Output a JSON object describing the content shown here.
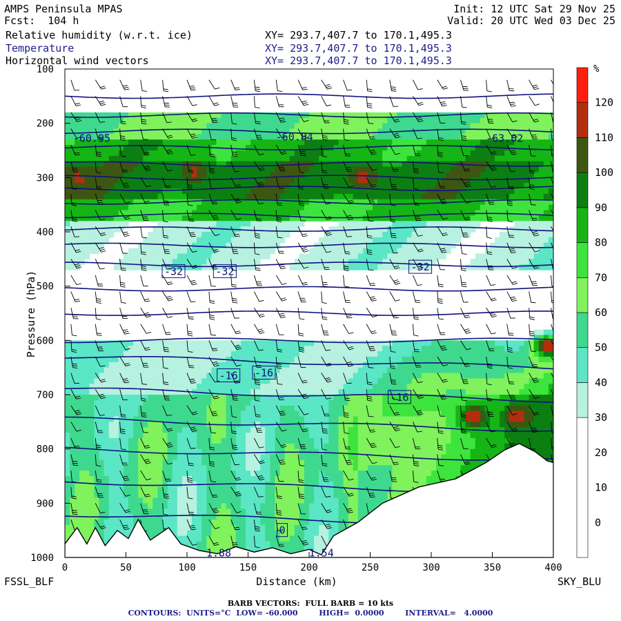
{
  "header": {
    "title": "AMPS Peninsula MPAS",
    "forecast": "Fcst:  104 h",
    "init": "Init: 12 UTC Sat 29 Nov 25",
    "valid": "Valid: 20 UTC Wed 03 Dec 25",
    "fields": [
      {
        "name": "Relative humidity (w.r.t. ice)",
        "xy": "XY= 293.7,407.7 to 170.1,495.3"
      },
      {
        "name": "Temperature",
        "xy": "XY= 293.7,407.7 to 170.1,495.3"
      },
      {
        "name": "Horizontal wind vectors",
        "xy": "XY= 293.7,407.7 to 170.1,495.3"
      }
    ]
  },
  "colors": {
    "rh_bins": [
      {
        "min": -10,
        "max": 30,
        "color": "#ffffff"
      },
      {
        "min": 30,
        "max": 40,
        "color": "#b7f1e0"
      },
      {
        "min": 40,
        "max": 50,
        "color": "#5be6c6"
      },
      {
        "min": 50,
        "max": 60,
        "color": "#3ed98e"
      },
      {
        "min": 60,
        "max": 70,
        "color": "#7ff25c"
      },
      {
        "min": 70,
        "max": 80,
        "color": "#3ee43e"
      },
      {
        "min": 80,
        "max": 90,
        "color": "#15b515"
      },
      {
        "min": 90,
        "max": 100,
        "color": "#0c7f12"
      },
      {
        "min": 100,
        "max": 110,
        "color": "#3d5612"
      },
      {
        "min": 110,
        "max": 120,
        "color": "#b22f0e"
      },
      {
        "min": 120,
        "max": 130,
        "color": "#ff1f0c"
      }
    ],
    "contour": "#101080",
    "terrain": "#ffffff"
  },
  "chart_data": {
    "type": "heatmap",
    "subtype": "vertical cross-section",
    "xlabel": "Distance (km)",
    "ylabel": "Pressure (hPa)",
    "xlim": [
      0,
      400
    ],
    "ylim": [
      1000,
      100
    ],
    "x_ticks": [
      "0",
      "50",
      "100",
      "150",
      "200",
      "250",
      "300",
      "350",
      "400"
    ],
    "y_ticks": [
      "100",
      "200",
      "300",
      "400",
      "500",
      "600",
      "700",
      "800",
      "900",
      "1000"
    ],
    "left_endpoint": "FSSL_BLF",
    "right_endpoint": "SKY_BLU",
    "colorbar": {
      "unit": "%",
      "labels": [
        "0",
        "10",
        "20",
        "30",
        "40",
        "50",
        "60",
        "70",
        "80",
        "90",
        "100",
        "110",
        "120"
      ]
    },
    "rh_bands": [
      {
        "p_top": 180,
        "p_bottom": 230,
        "rh": 60
      },
      {
        "p_top": 230,
        "p_bottom": 270,
        "rh": 85
      },
      {
        "p_top": 270,
        "p_bottom": 345,
        "rh": 95
      },
      {
        "p_top": 345,
        "p_bottom": 380,
        "rh": 82
      },
      {
        "p_top": 380,
        "p_bottom": 470,
        "rh": 35
      },
      {
        "p_top": 470,
        "p_bottom": 600,
        "rh": 12
      },
      {
        "p_top": 600,
        "p_bottom": 700,
        "rh": 38
      },
      {
        "p_top": 700,
        "p_bottom": 1000,
        "rh": 52
      }
    ],
    "rh_peaks": [
      {
        "x": 10,
        "p": 300,
        "rh": 112
      },
      {
        "x": 105,
        "p": 290,
        "rh": 112
      },
      {
        "x": 245,
        "p": 300,
        "rh": 115
      },
      {
        "x": 335,
        "p": 740,
        "rh": 122
      },
      {
        "x": 370,
        "p": 740,
        "rh": 115
      },
      {
        "x": 395,
        "p": 610,
        "rh": 118
      }
    ],
    "temperature_isotherms_p": [
      150,
      185,
      215,
      245,
      275,
      300,
      320,
      345,
      370,
      395,
      425,
      460,
      505,
      550,
      600,
      640,
      700,
      755,
      810,
      870,
      930
    ],
    "temperature_labels": [
      {
        "x": 22,
        "p": 228,
        "text": "-60.95"
      },
      {
        "x": 188,
        "p": 225,
        "text": "-60.84"
      },
      {
        "x": 360,
        "p": 228,
        "text": "-63.02"
      },
      {
        "x": 89,
        "p": 473,
        "text": "-32"
      },
      {
        "x": 131,
        "p": 473,
        "text": "-32"
      },
      {
        "x": 291,
        "p": 465,
        "text": "-32"
      },
      {
        "x": 134,
        "p": 665,
        "text": "-16"
      },
      {
        "x": 163,
        "p": 660,
        "text": "-16"
      },
      {
        "x": 274,
        "p": 705,
        "text": "-16"
      },
      {
        "x": 178,
        "p": 950,
        "text": "0"
      },
      {
        "x": 126,
        "p": 992,
        "text": "1.88"
      },
      {
        "x": 210,
        "p": 992,
        "text": "1.54"
      }
    ],
    "terrain_surface": [
      {
        "x": 0,
        "p": 975
      },
      {
        "x": 10,
        "p": 945
      },
      {
        "x": 18,
        "p": 975
      },
      {
        "x": 25,
        "p": 945
      },
      {
        "x": 33,
        "p": 978
      },
      {
        "x": 43,
        "p": 950
      },
      {
        "x": 52,
        "p": 965
      },
      {
        "x": 60,
        "p": 930
      },
      {
        "x": 70,
        "p": 968
      },
      {
        "x": 85,
        "p": 945
      },
      {
        "x": 95,
        "p": 975
      },
      {
        "x": 110,
        "p": 987
      },
      {
        "x": 125,
        "p": 993
      },
      {
        "x": 140,
        "p": 980
      },
      {
        "x": 155,
        "p": 990
      },
      {
        "x": 170,
        "p": 982
      },
      {
        "x": 185,
        "p": 993
      },
      {
        "x": 200,
        "p": 985
      },
      {
        "x": 210,
        "p": 995
      },
      {
        "x": 220,
        "p": 960
      },
      {
        "x": 240,
        "p": 935
      },
      {
        "x": 260,
        "p": 900
      },
      {
        "x": 290,
        "p": 870
      },
      {
        "x": 320,
        "p": 855
      },
      {
        "x": 345,
        "p": 825
      },
      {
        "x": 360,
        "p": 802
      },
      {
        "x": 372,
        "p": 790
      },
      {
        "x": 385,
        "p": 805
      },
      {
        "x": 395,
        "p": 822
      },
      {
        "x": 400,
        "p": 825
      }
    ],
    "barb_columns_x": [
      5,
      25,
      45,
      62,
      80,
      100,
      118,
      136,
      155,
      173,
      191,
      210,
      228,
      247,
      266,
      285,
      305,
      324,
      345,
      362,
      380,
      398
    ],
    "barb_levels_p": [
      120,
      150,
      180,
      210,
      240,
      270,
      300,
      330,
      360,
      390,
      420,
      450,
      480,
      510,
      540,
      570,
      600,
      630,
      660,
      690,
      720,
      750,
      780,
      810,
      840,
      870,
      900,
      930,
      960
    ],
    "barb_note": "BARB VECTORS:  FULL BARB = 10 kts",
    "contour_note": "CONTOURS:  UNITS=°C  LOW= -60.000        HIGH=  0.0000        INTERVAL=   4.0000"
  }
}
